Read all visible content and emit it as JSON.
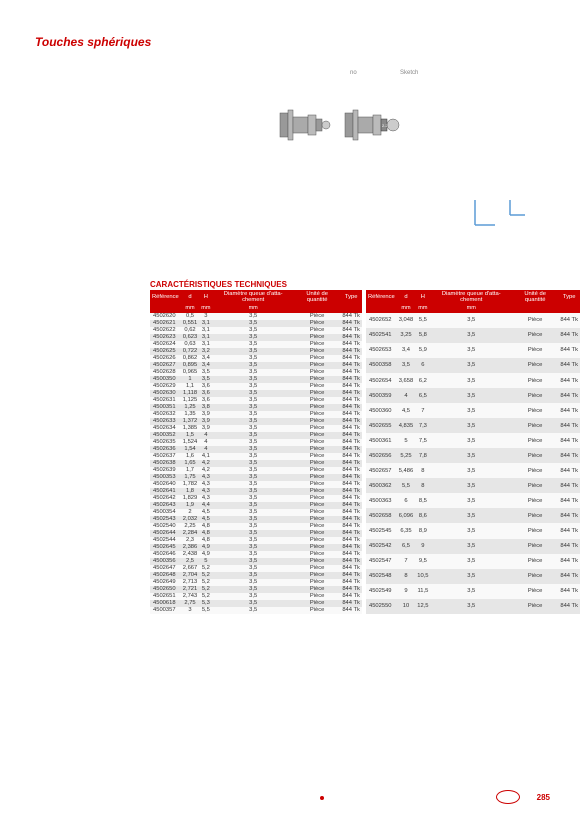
{
  "title": "Touches sphériques",
  "label_no": "no",
  "label_diag1": "Diagram",
  "label_diag2": "Sketch",
  "section": "CARACTÉRISTIQUES TECHNIQUES",
  "headers": [
    "Référence",
    "d",
    "H",
    "Diamètre queue d'atta-chement",
    "Unité de quantité",
    "Type"
  ],
  "subunits": [
    "",
    "mm",
    "mm",
    "mm",
    "",
    ""
  ],
  "table1": [
    [
      "4502620",
      "0,5",
      "3",
      "3,5",
      "Pièce",
      "844 Tk"
    ],
    [
      "4502621",
      "0,551",
      "3,1",
      "3,5",
      "Pièce",
      "844 Tk"
    ],
    [
      "4502622",
      "0,62",
      "3,1",
      "3,5",
      "Pièce",
      "844 Tk"
    ],
    [
      "4502623",
      "0,623",
      "3,1",
      "3,5",
      "Pièce",
      "844 Tk"
    ],
    [
      "4502624",
      "0,63",
      "3,1",
      "3,5",
      "Pièce",
      "844 Tk"
    ],
    [
      "4502625",
      "0,722",
      "3,2",
      "3,5",
      "Pièce",
      "844 Tk"
    ],
    [
      "4502626",
      "0,862",
      "3,4",
      "3,5",
      "Pièce",
      "844 Tk"
    ],
    [
      "4502627",
      "0,895",
      "3,4",
      "3,5",
      "Pièce",
      "844 Tk"
    ],
    [
      "4502628",
      "0,965",
      "3,5",
      "3,5",
      "Pièce",
      "844 Tk"
    ],
    [
      "4500350",
      "1",
      "3,5",
      "3,5",
      "Pièce",
      "844 Tk"
    ],
    [
      "4502629",
      "1,1",
      "3,6",
      "3,5",
      "Pièce",
      "844 Tk"
    ],
    [
      "4502630",
      "1,118",
      "3,6",
      "3,5",
      "Pièce",
      "844 Tk"
    ],
    [
      "4502631",
      "1,125",
      "3,6",
      "3,5",
      "Pièce",
      "844 Tk"
    ],
    [
      "4500351",
      "1,25",
      "3,8",
      "3,5",
      "Pièce",
      "844 Tk"
    ],
    [
      "4502632",
      "1,35",
      "3,9",
      "3,5",
      "Pièce",
      "844 Tk"
    ],
    [
      "4502633",
      "1,372",
      "3,9",
      "3,5",
      "Pièce",
      "844 Tk"
    ],
    [
      "4502634",
      "1,385",
      "3,9",
      "3,5",
      "Pièce",
      "844 Tk"
    ],
    [
      "4500352",
      "1,5",
      "4",
      "3,5",
      "Pièce",
      "844 Tk"
    ],
    [
      "4502635",
      "1,524",
      "4",
      "3,5",
      "Pièce",
      "844 Tk"
    ],
    [
      "4502636",
      "1,54",
      "4",
      "3,5",
      "Pièce",
      "844 Tk"
    ],
    [
      "4502637",
      "1,6",
      "4,1",
      "3,5",
      "Pièce",
      "844 Tk"
    ],
    [
      "4502638",
      "1,65",
      "4,2",
      "3,5",
      "Pièce",
      "844 Tk"
    ],
    [
      "4502639",
      "1,7",
      "4,2",
      "3,5",
      "Pièce",
      "844 Tk"
    ],
    [
      "4500353",
      "1,75",
      "4,3",
      "3,5",
      "Pièce",
      "844 Tk"
    ],
    [
      "4502640",
      "1,782",
      "4,3",
      "3,5",
      "Pièce",
      "844 Tk"
    ],
    [
      "4502641",
      "1,8",
      "4,3",
      "3,5",
      "Pièce",
      "844 Tk"
    ],
    [
      "4502642",
      "1,829",
      "4,3",
      "3,5",
      "Pièce",
      "844 Tk"
    ],
    [
      "4502643",
      "1,9",
      "4,4",
      "3,5",
      "Pièce",
      "844 Tk"
    ],
    [
      "4500354",
      "2",
      "4,5",
      "3,5",
      "Pièce",
      "844 Tk"
    ],
    [
      "4502543",
      "2,032",
      "4,5",
      "3,5",
      "Pièce",
      "844 Tk"
    ],
    [
      "4502540",
      "2,25",
      "4,8",
      "3,5",
      "Pièce",
      "844 Tk"
    ],
    [
      "4502644",
      "2,284",
      "4,8",
      "3,5",
      "Pièce",
      "844 Tk"
    ],
    [
      "4502544",
      "2,3",
      "4,8",
      "3,5",
      "Pièce",
      "844 Tk"
    ],
    [
      "4502645",
      "2,386",
      "4,9",
      "3,5",
      "Pièce",
      "844 Tk"
    ],
    [
      "4502646",
      "2,438",
      "4,9",
      "3,5",
      "Pièce",
      "844 Tk"
    ],
    [
      "4500356",
      "2,5",
      "5",
      "3,5",
      "Pièce",
      "844 Tk"
    ],
    [
      "4502647",
      "2,667",
      "5,2",
      "3,5",
      "Pièce",
      "844 Tk"
    ],
    [
      "4502648",
      "2,704",
      "5,2",
      "3,5",
      "Pièce",
      "844 Tk"
    ],
    [
      "4502649",
      "2,713",
      "5,2",
      "3,5",
      "Pièce",
      "844 Tk"
    ],
    [
      "4502650",
      "2,721",
      "5,2",
      "3,5",
      "Pièce",
      "844 Tk"
    ],
    [
      "4502651",
      "2,743",
      "5,2",
      "3,5",
      "Pièce",
      "844 Tk"
    ],
    [
      "4500618",
      "2,75",
      "5,3",
      "3,5",
      "Pièce",
      "844 Tk"
    ],
    [
      "4500357",
      "3",
      "5,5",
      "3,5",
      "Pièce",
      "844 Tk"
    ]
  ],
  "table2": [
    [
      "4502652",
      "3,048",
      "5,5",
      "3,5",
      "Pièce",
      "844 Tk"
    ],
    [
      "4502541",
      "3,25",
      "5,8",
      "3,5",
      "Pièce",
      "844 Tk"
    ],
    [
      "4502653",
      "3,4",
      "5,9",
      "3,5",
      "Pièce",
      "844 Tk"
    ],
    [
      "4500358",
      "3,5",
      "6",
      "3,5",
      "Pièce",
      "844 Tk"
    ],
    [
      "4502654",
      "3,658",
      "6,2",
      "3,5",
      "Pièce",
      "844 Tk"
    ],
    [
      "4500359",
      "4",
      "6,5",
      "3,5",
      "Pièce",
      "844 Tk"
    ],
    [
      "4500360",
      "4,5",
      "7",
      "3,5",
      "Pièce",
      "844 Tk"
    ],
    [
      "4502655",
      "4,835",
      "7,3",
      "3,5",
      "Pièce",
      "844 Tk"
    ],
    [
      "4500361",
      "5",
      "7,5",
      "3,5",
      "Pièce",
      "844 Tk"
    ],
    [
      "4502656",
      "5,25",
      "7,8",
      "3,5",
      "Pièce",
      "844 Tk"
    ],
    [
      "4502657",
      "5,486",
      "8",
      "3,5",
      "Pièce",
      "844 Tk"
    ],
    [
      "4500362",
      "5,5",
      "8",
      "3,5",
      "Pièce",
      "844 Tk"
    ],
    [
      "4500363",
      "6",
      "8,5",
      "3,5",
      "Pièce",
      "844 Tk"
    ],
    [
      "4502658",
      "6,096",
      "8,6",
      "3,5",
      "Pièce",
      "844 Tk"
    ],
    [
      "4502545",
      "6,35",
      "8,9",
      "3,5",
      "Pièce",
      "844 Tk"
    ],
    [
      "4502542",
      "6,5",
      "9",
      "3,5",
      "Pièce",
      "844 Tk"
    ],
    [
      "4502547",
      "7",
      "9,5",
      "3,5",
      "Pièce",
      "844 Tk"
    ],
    [
      "4502548",
      "8",
      "10,5",
      "3,5",
      "Pièce",
      "844 Tk"
    ],
    [
      "4502549",
      "9",
      "11,5",
      "3,5",
      "Pièce",
      "844 Tk"
    ],
    [
      "4502550",
      "10",
      "12,5",
      "3,5",
      "Pièce",
      "844 Tk"
    ]
  ],
  "page": "285"
}
